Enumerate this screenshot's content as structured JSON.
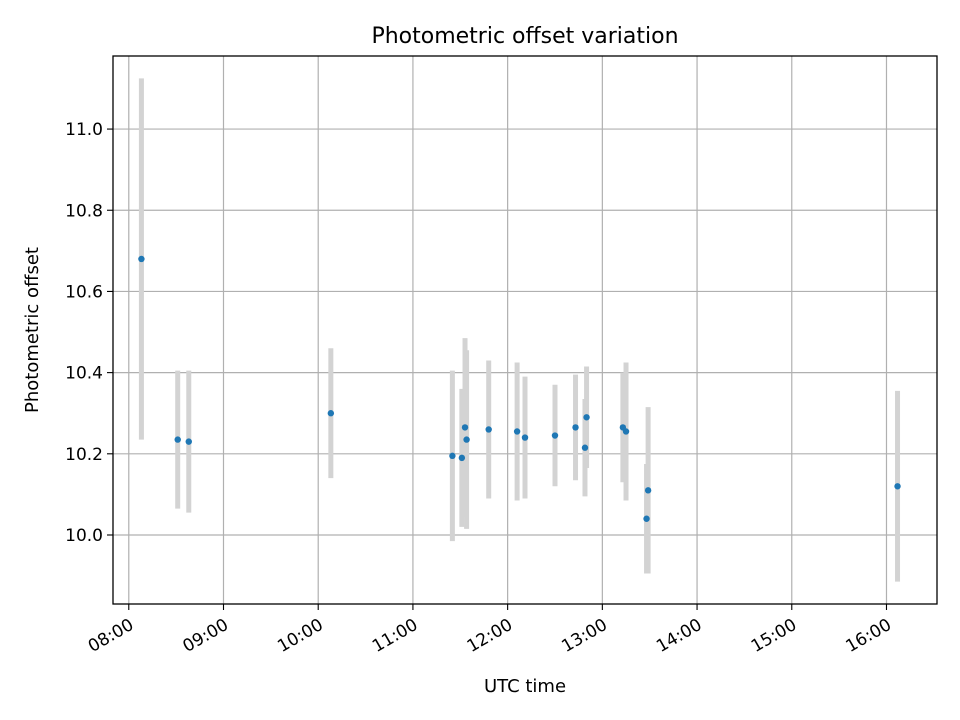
{
  "chart_data": {
    "type": "scatter",
    "title": "Photometric offset variation",
    "xlabel": "UTC time",
    "ylabel": "Photometric offset",
    "x_unit": "hours (UTC)",
    "xlim": [
      "07:50",
      "16:32"
    ],
    "ylim": [
      9.83,
      11.18
    ],
    "x_ticks": [
      "08:00",
      "09:00",
      "10:00",
      "11:00",
      "12:00",
      "13:00",
      "14:00",
      "15:00",
      "16:00"
    ],
    "y_ticks": [
      "10.0",
      "10.2",
      "10.4",
      "10.6",
      "10.8",
      "11.0"
    ],
    "y_tick_values": [
      10.0,
      10.2,
      10.4,
      10.6,
      10.8,
      11.0
    ],
    "grid": true,
    "colors": {
      "point": "#1f77b4",
      "errorbar": "#d3d3d3",
      "grid": "#b0b0b0"
    },
    "points": [
      {
        "time": "08:08",
        "y": 10.68,
        "err": 0.445
      },
      {
        "time": "08:31",
        "y": 10.235,
        "err": 0.17
      },
      {
        "time": "08:38",
        "y": 10.23,
        "err": 0.175
      },
      {
        "time": "10:08",
        "y": 10.3,
        "err": 0.16
      },
      {
        "time": "11:25",
        "y": 10.195,
        "err": 0.21
      },
      {
        "time": "11:31",
        "y": 10.19,
        "err": 0.17
      },
      {
        "time": "11:33",
        "y": 10.265,
        "err": 0.22
      },
      {
        "time": "11:34",
        "y": 10.235,
        "err": 0.22
      },
      {
        "time": "11:48",
        "y": 10.26,
        "err": 0.17
      },
      {
        "time": "12:06",
        "y": 10.255,
        "err": 0.17
      },
      {
        "time": "12:11",
        "y": 10.24,
        "err": 0.15
      },
      {
        "time": "12:30",
        "y": 10.245,
        "err": 0.125
      },
      {
        "time": "12:43",
        "y": 10.265,
        "err": 0.13
      },
      {
        "time": "12:49",
        "y": 10.215,
        "err": 0.12
      },
      {
        "time": "12:50",
        "y": 10.29,
        "err": 0.125
      },
      {
        "time": "13:13",
        "y": 10.265,
        "err": 0.135
      },
      {
        "time": "13:15",
        "y": 10.255,
        "err": 0.17
      },
      {
        "time": "13:28",
        "y": 10.04,
        "err": 0.135
      },
      {
        "time": "13:29",
        "y": 10.11,
        "err": 0.205
      },
      {
        "time": "16:07",
        "y": 10.12,
        "err": 0.235
      }
    ]
  }
}
